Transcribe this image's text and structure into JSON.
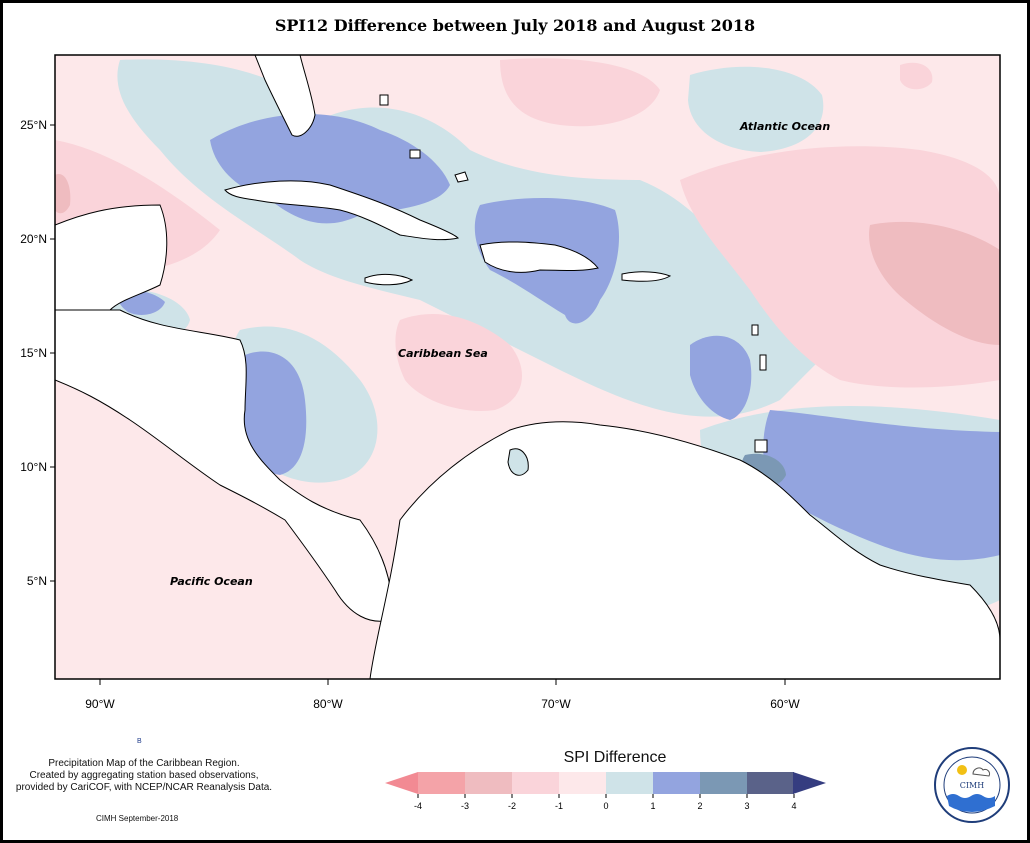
{
  "title": "SPI12 Difference between July 2018 and August 2018",
  "map": {
    "labels": {
      "atlantic": "Atlantic Ocean",
      "caribbean": "Caribbean Sea",
      "pacific": "Pacific Ocean"
    },
    "lat_ticks": [
      "25°N",
      "20°N",
      "15°N",
      "10°N",
      "5°N"
    ],
    "lon_ticks": [
      "90°W",
      "80°W",
      "70°W",
      "60°W"
    ],
    "extent": {
      "lon_min": -92,
      "lon_max": -51,
      "lat_min": 0.5,
      "lat_max": 28
    }
  },
  "info_text": {
    "line1": "Precipitation Map of the Caribbean Region.",
    "line2": "Created by aggregating station based observations,",
    "line3": "provided by CariCOF, with NCEP/NCAR Reanalysis Data."
  },
  "stamp": "CIMH September-2018",
  "marker_text": "B",
  "legend": {
    "title": "SPI Difference",
    "ticks": [
      "-4",
      "-3",
      "-2",
      "-1",
      "0",
      "1",
      "2",
      "3",
      "4"
    ],
    "colors": [
      "#f4a3a8",
      "#efbcc0",
      "#fad4da",
      "#fde8ea",
      "#cfe3e8",
      "#93a4df",
      "#7b98b4",
      "#5a6289"
    ],
    "left_arrow_color": "#f28a93",
    "right_arrow_color": "#353d80"
  },
  "logo": {
    "name": "CIMH",
    "ring_text": "Caribbean Institute for Meteorology and Hydrology"
  }
}
